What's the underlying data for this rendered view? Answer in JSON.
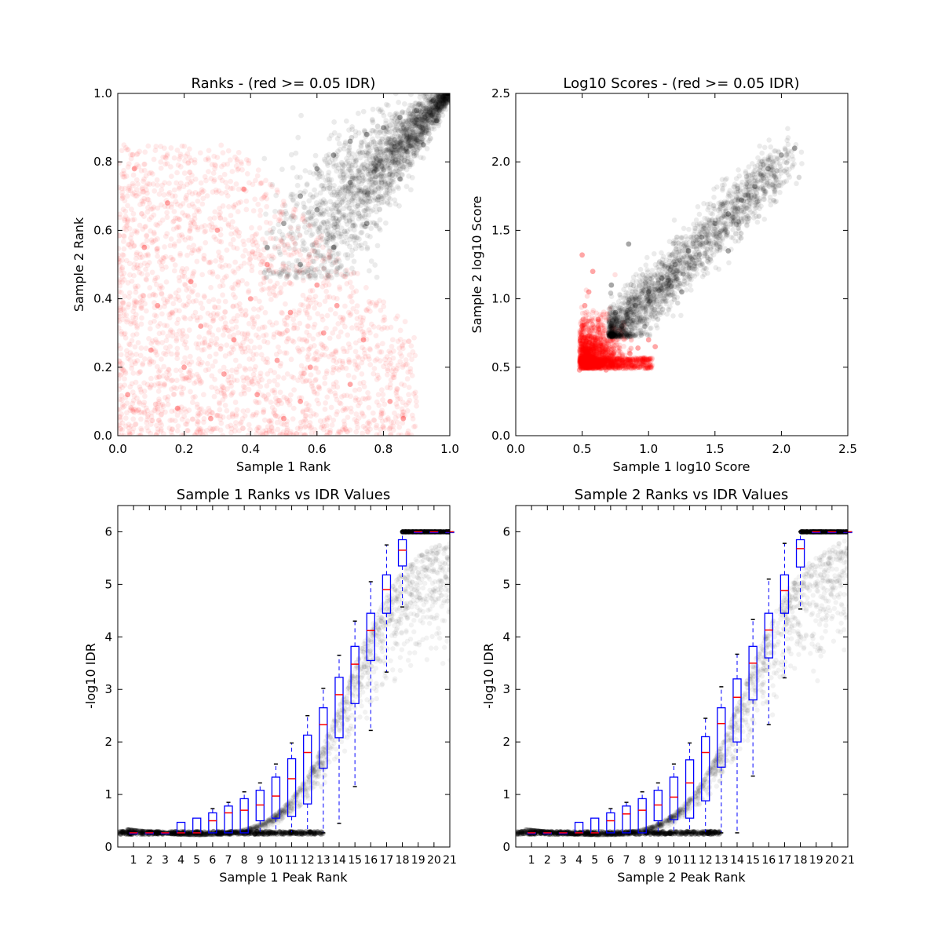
{
  "chart_data": [
    {
      "type": "scatter",
      "title": "Ranks - (red >= 0.05 IDR)",
      "xlabel": "Sample 1 Rank",
      "ylabel": "Sample 2 Rank",
      "xlim": [
        0,
        1.0
      ],
      "ylim": [
        0,
        1.0
      ],
      "xticks": [
        "0.0",
        "0.2",
        "0.4",
        "0.6",
        "0.8",
        "1.0"
      ],
      "yticks": [
        "0.0",
        "0.2",
        "0.4",
        "0.6",
        "0.8",
        "1.0"
      ],
      "series": [
        {
          "color": "#ff0000",
          "description": "points with IDR >= 0.05",
          "points": [
            [
              0.03,
              0.12
            ],
            [
              0.1,
              0.25
            ],
            [
              0.18,
              0.08
            ],
            [
              0.25,
              0.32
            ],
            [
              0.32,
              0.18
            ],
            [
              0.4,
              0.4
            ],
            [
              0.48,
              0.22
            ],
            [
              0.55,
              0.1
            ],
            [
              0.62,
              0.3
            ],
            [
              0.7,
              0.15
            ],
            [
              0.08,
              0.55
            ],
            [
              0.15,
              0.68
            ],
            [
              0.22,
              0.45
            ],
            [
              0.3,
              0.6
            ],
            [
              0.38,
              0.72
            ],
            [
              0.45,
              0.5
            ],
            [
              0.52,
              0.36
            ],
            [
              0.6,
              0.44
            ],
            [
              0.05,
              0.78
            ],
            [
              0.12,
              0.38
            ],
            [
              0.2,
              0.2
            ],
            [
              0.28,
              0.05
            ],
            [
              0.35,
              0.28
            ],
            [
              0.42,
              0.12
            ],
            [
              0.5,
              0.05
            ],
            [
              0.58,
              0.2
            ],
            [
              0.66,
              0.38
            ],
            [
              0.74,
              0.28
            ],
            [
              0.82,
              0.1
            ],
            [
              0.86,
              0.05
            ]
          ]
        },
        {
          "color": "#000000",
          "description": "points with IDR < 0.05",
          "points": [
            [
              0.45,
              0.55
            ],
            [
              0.5,
              0.62
            ],
            [
              0.55,
              0.7
            ],
            [
              0.6,
              0.78
            ],
            [
              0.65,
              0.82
            ],
            [
              0.7,
              0.86
            ],
            [
              0.75,
              0.88
            ],
            [
              0.8,
              0.9
            ],
            [
              0.85,
              0.93
            ],
            [
              0.9,
              0.95
            ],
            [
              0.95,
              0.98
            ],
            [
              0.98,
              0.99
            ],
            [
              0.55,
              0.5
            ],
            [
              0.65,
              0.55
            ],
            [
              0.75,
              0.62
            ],
            [
              0.85,
              0.75
            ],
            [
              0.92,
              0.85
            ],
            [
              0.96,
              0.92
            ],
            [
              0.6,
              0.66
            ],
            [
              0.7,
              0.74
            ]
          ]
        }
      ]
    },
    {
      "type": "scatter",
      "title": "Log10 Scores - (red >= 0.05 IDR)",
      "xlabel": "Sample 1 log10 Score",
      "ylabel": "Sample 2 log10 Score",
      "xlim": [
        0,
        2.5
      ],
      "ylim": [
        0,
        2.5
      ],
      "xticks": [
        "0.0",
        "0.5",
        "1.0",
        "1.5",
        "2.0",
        "2.5"
      ],
      "yticks": [
        "0.0",
        "0.5",
        "1.0",
        "1.5",
        "2.0",
        "2.5"
      ],
      "series": [
        {
          "color": "#ff0000",
          "description": "points with IDR >= 0.05",
          "points": [
            [
              0.48,
              0.48
            ],
            [
              0.52,
              0.55
            ],
            [
              0.56,
              0.62
            ],
            [
              0.6,
              0.7
            ],
            [
              0.64,
              0.52
            ],
            [
              0.7,
              0.5
            ],
            [
              0.75,
              0.49
            ],
            [
              0.8,
              0.55
            ],
            [
              0.86,
              0.6
            ],
            [
              0.92,
              0.64
            ],
            [
              0.5,
              0.8
            ],
            [
              0.52,
              0.95
            ],
            [
              0.55,
              1.05
            ],
            [
              0.58,
              1.2
            ],
            [
              0.5,
              1.32
            ],
            [
              0.62,
              0.85
            ],
            [
              0.68,
              0.48
            ],
            [
              1.0,
              0.7
            ],
            [
              1.05,
              0.65
            ],
            [
              0.54,
              0.72
            ]
          ]
        },
        {
          "color": "#000000",
          "description": "points with IDR < 0.05",
          "points": [
            [
              0.7,
              0.75
            ],
            [
              0.75,
              0.9
            ],
            [
              0.8,
              0.8
            ],
            [
              0.9,
              0.95
            ],
            [
              1.0,
              1.05
            ],
            [
              1.1,
              1.15
            ],
            [
              1.2,
              1.25
            ],
            [
              1.3,
              1.35
            ],
            [
              1.4,
              1.45
            ],
            [
              1.5,
              1.55
            ],
            [
              1.6,
              1.62
            ],
            [
              1.7,
              1.72
            ],
            [
              1.8,
              1.82
            ],
            [
              1.9,
              1.95
            ],
            [
              2.0,
              2.05
            ],
            [
              2.1,
              2.1
            ],
            [
              0.72,
              1.1
            ],
            [
              0.85,
              1.4
            ],
            [
              1.25,
              1.05
            ],
            [
              1.6,
              1.35
            ]
          ]
        }
      ]
    },
    {
      "type": "box",
      "title": "Sample 1 Ranks vs IDR Values",
      "xlabel": "Sample 1 Peak Rank",
      "ylabel": "-log10 IDR",
      "ylim": [
        0,
        6.5
      ],
      "yticks": [
        "0",
        "1",
        "2",
        "3",
        "4",
        "5",
        "6"
      ],
      "categories": [
        "1",
        "2",
        "3",
        "4",
        "5",
        "6",
        "7",
        "8",
        "9",
        "10",
        "11",
        "12",
        "13",
        "14",
        "15",
        "16",
        "17",
        "18",
        "19",
        "20",
        "21"
      ],
      "boxes": [
        {
          "q1": 0.27,
          "median": 0.27,
          "q3": 0.27,
          "whislo": 0.27,
          "whishi": 0.27
        },
        {
          "q1": 0.27,
          "median": 0.27,
          "q3": 0.27,
          "whislo": 0.27,
          "whishi": 0.27
        },
        {
          "q1": 0.27,
          "median": 0.27,
          "q3": 0.27,
          "whislo": 0.27,
          "whishi": 0.27
        },
        {
          "q1": 0.27,
          "median": 0.27,
          "q3": 0.47,
          "whislo": 0.27,
          "whishi": 0.47
        },
        {
          "q1": 0.27,
          "median": 0.27,
          "q3": 0.55,
          "whislo": 0.27,
          "whishi": 0.55
        },
        {
          "q1": 0.27,
          "median": 0.5,
          "q3": 0.65,
          "whislo": 0.27,
          "whishi": 0.73
        },
        {
          "q1": 0.27,
          "median": 0.65,
          "q3": 0.78,
          "whislo": 0.27,
          "whishi": 0.85
        },
        {
          "q1": 0.27,
          "median": 0.7,
          "q3": 0.92,
          "whislo": 0.27,
          "whishi": 1.05
        },
        {
          "q1": 0.5,
          "median": 0.8,
          "q3": 1.08,
          "whislo": 0.27,
          "whishi": 1.22
        },
        {
          "q1": 0.55,
          "median": 0.97,
          "q3": 1.33,
          "whislo": 0.27,
          "whishi": 1.58
        },
        {
          "q1": 0.58,
          "median": 1.3,
          "q3": 1.68,
          "whislo": 0.27,
          "whishi": 1.98
        },
        {
          "q1": 0.82,
          "median": 1.8,
          "q3": 2.13,
          "whislo": 0.27,
          "whishi": 2.5
        },
        {
          "q1": 1.5,
          "median": 2.33,
          "q3": 2.65,
          "whislo": 0.27,
          "whishi": 3.02
        },
        {
          "q1": 2.08,
          "median": 2.9,
          "q3": 3.23,
          "whislo": 0.45,
          "whishi": 3.65
        },
        {
          "q1": 2.73,
          "median": 3.48,
          "q3": 3.82,
          "whislo": 1.15,
          "whishi": 4.3
        },
        {
          "q1": 3.55,
          "median": 4.12,
          "q3": 4.45,
          "whislo": 2.22,
          "whishi": 5.05
        },
        {
          "q1": 4.45,
          "median": 4.9,
          "q3": 5.18,
          "whislo": 3.33,
          "whishi": 5.75
        },
        {
          "q1": 5.35,
          "median": 5.65,
          "q3": 5.85,
          "whislo": 4.57,
          "whishi": 6.0
        },
        {
          "q1": 6.0,
          "median": 6.0,
          "q3": 6.0,
          "whislo": 6.0,
          "whishi": 6.0
        },
        {
          "q1": 6.0,
          "median": 6.0,
          "q3": 6.0,
          "whislo": 6.0,
          "whishi": 6.0
        },
        {
          "q1": 6.0,
          "median": 6.0,
          "q3": 6.0,
          "whislo": 6.0,
          "whishi": 6.0
        }
      ],
      "scatter_color": "#000000"
    },
    {
      "type": "box",
      "title": "Sample 2 Ranks vs IDR Values",
      "xlabel": "Sample 2 Peak Rank",
      "ylabel": "-log10 IDR",
      "ylim": [
        0,
        6.5
      ],
      "yticks": [
        "0",
        "1",
        "2",
        "3",
        "4",
        "5",
        "6"
      ],
      "categories": [
        "1",
        "2",
        "3",
        "4",
        "5",
        "6",
        "7",
        "8",
        "9",
        "10",
        "11",
        "12",
        "13",
        "14",
        "15",
        "16",
        "17",
        "18",
        "19",
        "20",
        "21"
      ],
      "boxes": [
        {
          "q1": 0.27,
          "median": 0.27,
          "q3": 0.27,
          "whislo": 0.27,
          "whishi": 0.27
        },
        {
          "q1": 0.27,
          "median": 0.27,
          "q3": 0.27,
          "whislo": 0.27,
          "whishi": 0.27
        },
        {
          "q1": 0.27,
          "median": 0.27,
          "q3": 0.27,
          "whislo": 0.27,
          "whishi": 0.27
        },
        {
          "q1": 0.27,
          "median": 0.27,
          "q3": 0.47,
          "whislo": 0.27,
          "whishi": 0.47
        },
        {
          "q1": 0.27,
          "median": 0.27,
          "q3": 0.55,
          "whislo": 0.27,
          "whishi": 0.55
        },
        {
          "q1": 0.27,
          "median": 0.5,
          "q3": 0.65,
          "whislo": 0.27,
          "whishi": 0.73
        },
        {
          "q1": 0.27,
          "median": 0.63,
          "q3": 0.78,
          "whislo": 0.27,
          "whishi": 0.85
        },
        {
          "q1": 0.27,
          "median": 0.7,
          "q3": 0.92,
          "whislo": 0.27,
          "whishi": 1.05
        },
        {
          "q1": 0.5,
          "median": 0.8,
          "q3": 1.08,
          "whislo": 0.27,
          "whishi": 1.22
        },
        {
          "q1": 0.52,
          "median": 0.95,
          "q3": 1.33,
          "whislo": 0.27,
          "whishi": 1.58
        },
        {
          "q1": 0.55,
          "median": 1.22,
          "q3": 1.66,
          "whislo": 0.27,
          "whishi": 1.98
        },
        {
          "q1": 0.88,
          "median": 1.8,
          "q3": 2.1,
          "whislo": 0.27,
          "whishi": 2.45
        },
        {
          "q1": 1.52,
          "median": 2.35,
          "q3": 2.65,
          "whislo": 0.27,
          "whishi": 3.05
        },
        {
          "q1": 2.0,
          "median": 2.85,
          "q3": 3.2,
          "whislo": 0.27,
          "whishi": 3.67
        },
        {
          "q1": 2.8,
          "median": 3.5,
          "q3": 3.82,
          "whislo": 1.35,
          "whishi": 4.33
        },
        {
          "q1": 3.6,
          "median": 4.13,
          "q3": 4.45,
          "whislo": 2.33,
          "whishi": 5.1
        },
        {
          "q1": 4.45,
          "median": 4.88,
          "q3": 5.18,
          "whislo": 3.22,
          "whishi": 5.78
        },
        {
          "q1": 5.33,
          "median": 5.68,
          "q3": 5.85,
          "whislo": 4.53,
          "whishi": 6.0
        },
        {
          "q1": 6.0,
          "median": 6.0,
          "q3": 6.0,
          "whislo": 6.0,
          "whishi": 6.0
        },
        {
          "q1": 6.0,
          "median": 6.0,
          "q3": 6.0,
          "whislo": 6.0,
          "whishi": 6.0
        },
        {
          "q1": 6.0,
          "median": 6.0,
          "q3": 6.0,
          "whislo": 6.0,
          "whishi": 6.0
        }
      ],
      "scatter_color": "#000000"
    }
  ],
  "colors": {
    "box_stroke": "#0000ff",
    "median": "#ff0000",
    "dashed_reference": "#ff0000"
  }
}
